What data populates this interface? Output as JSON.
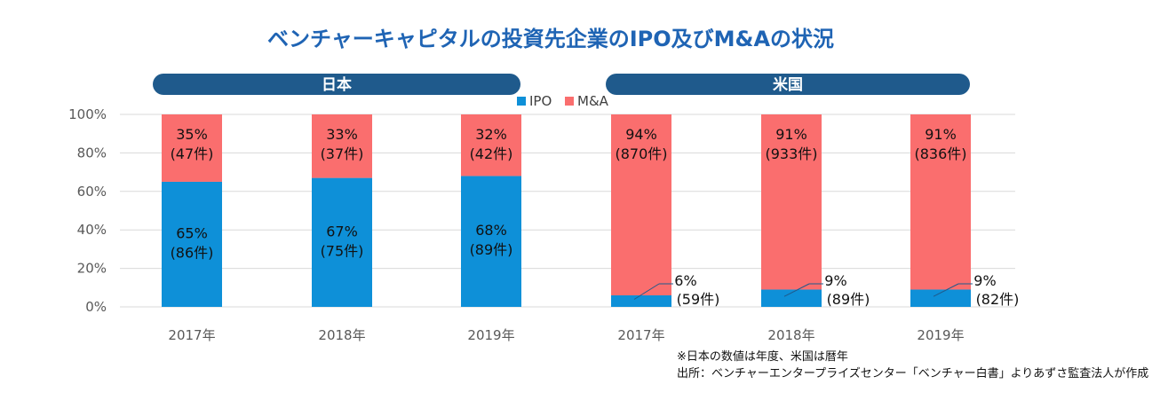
{
  "chart_data": {
    "type": "bar",
    "stacked": true,
    "percent_stacked": true,
    "title": "ベンチャーキャピタルの投資先企業のIPO及びM&Aの状況",
    "groups": [
      "日本",
      "米国"
    ],
    "categories": [
      "2017年",
      "2018年",
      "2019年",
      "2017年",
      "2018年",
      "2019年"
    ],
    "category_group": [
      "日本",
      "日本",
      "日本",
      "米国",
      "米国",
      "米国"
    ],
    "series": [
      {
        "name": "IPO",
        "color": "#0e90d8",
        "values": [
          65,
          67,
          68,
          6,
          9,
          9
        ],
        "labels": [
          "65%",
          "67%",
          "68%",
          "6%",
          "9%",
          "9%"
        ],
        "counts": [
          "(86件)",
          "(75件)",
          "(89件)",
          "(59件)",
          "(89件)",
          "(82件)"
        ]
      },
      {
        "name": "M&A",
        "color": "#fa6e6e",
        "values": [
          35,
          33,
          32,
          94,
          91,
          91
        ],
        "labels": [
          "35%",
          "33%",
          "32%",
          "94%",
          "91%",
          "91%"
        ],
        "counts": [
          "(47件)",
          "(37件)",
          "(42件)",
          "(870件)",
          "(933件)",
          "(836件)"
        ]
      }
    ],
    "yticks": [
      "0%",
      "20%",
      "40%",
      "60%",
      "80%",
      "100%"
    ],
    "ylim": [
      0,
      100
    ],
    "grid": true,
    "legend": "top-center",
    "xlabel": "",
    "ylabel": "",
    "notes": [
      "※日本の数値は年度、米国は暦年",
      "出所：ベンチャーエンタープライズセンター「ベンチャー白書」よりあずさ監査法人が作成"
    ]
  },
  "colors": {
    "title": "#1f64b4",
    "banner": "#1f5a8c",
    "grid": "#d9d9d9",
    "axis_text": "#595959"
  }
}
